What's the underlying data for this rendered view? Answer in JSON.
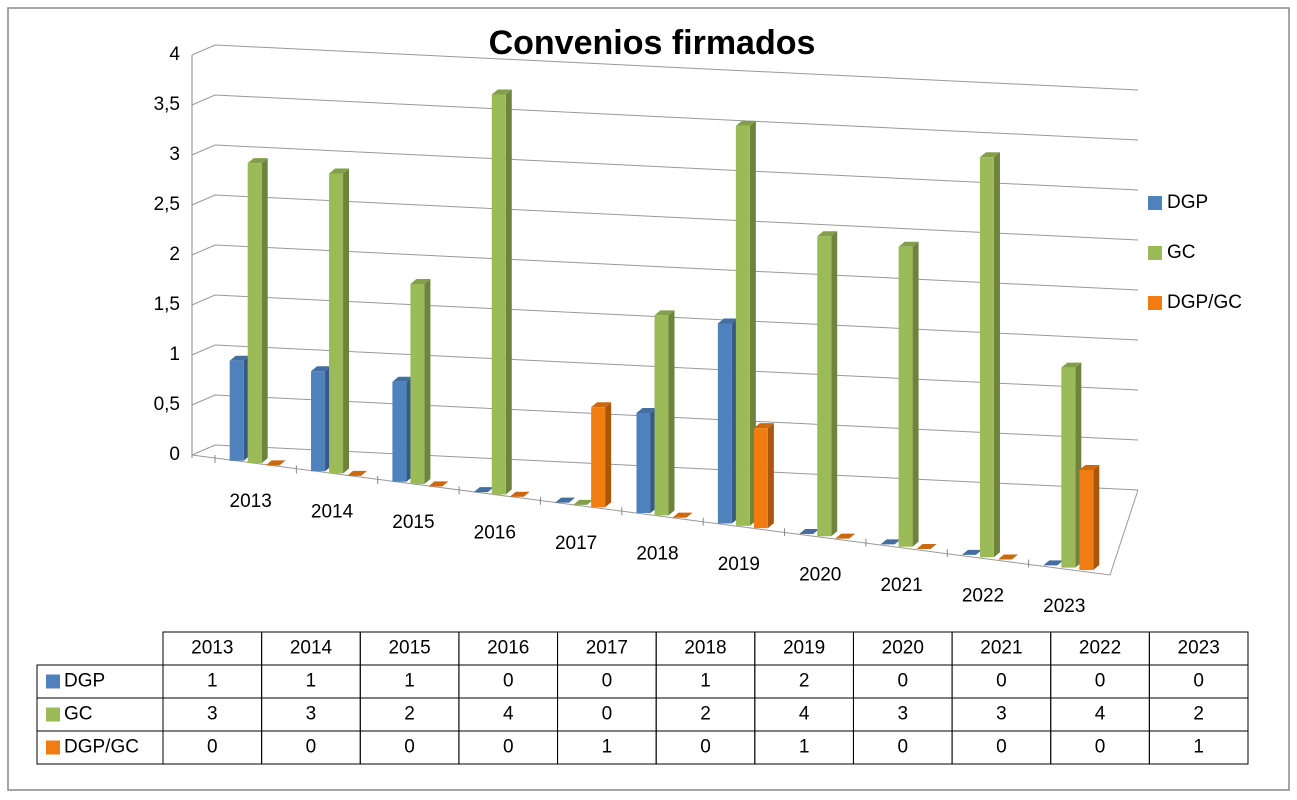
{
  "chart_data": {
    "type": "bar3d",
    "title": "Convenios firmados",
    "categories": [
      "2013",
      "2014",
      "2015",
      "2016",
      "2017",
      "2018",
      "2019",
      "2020",
      "2021",
      "2022",
      "2023"
    ],
    "series": [
      {
        "name": "DGP",
        "color": "#4f81bd",
        "values": [
          1,
          1,
          1,
          0,
          0,
          1,
          2,
          0,
          0,
          0,
          0
        ]
      },
      {
        "name": "GC",
        "color": "#9bbb59",
        "values": [
          3,
          3,
          2,
          4,
          0,
          2,
          4,
          3,
          3,
          4,
          2
        ]
      },
      {
        "name": "DGP/GC",
        "color": "#f07c12",
        "values": [
          0,
          0,
          0,
          0,
          1,
          0,
          1,
          0,
          0,
          0,
          1
        ]
      }
    ],
    "ylim": [
      0,
      4
    ],
    "yticks": [
      0,
      {
        "value": 0.5,
        "label": "0,5"
      },
      1,
      {
        "value": 1.5,
        "label": "1,5"
      },
      2,
      {
        "value": 2.5,
        "label": "2,5"
      },
      3,
      {
        "value": 3.5,
        "label": "3,5"
      },
      4
    ],
    "grid": true,
    "legend": "right",
    "data_table": true
  }
}
